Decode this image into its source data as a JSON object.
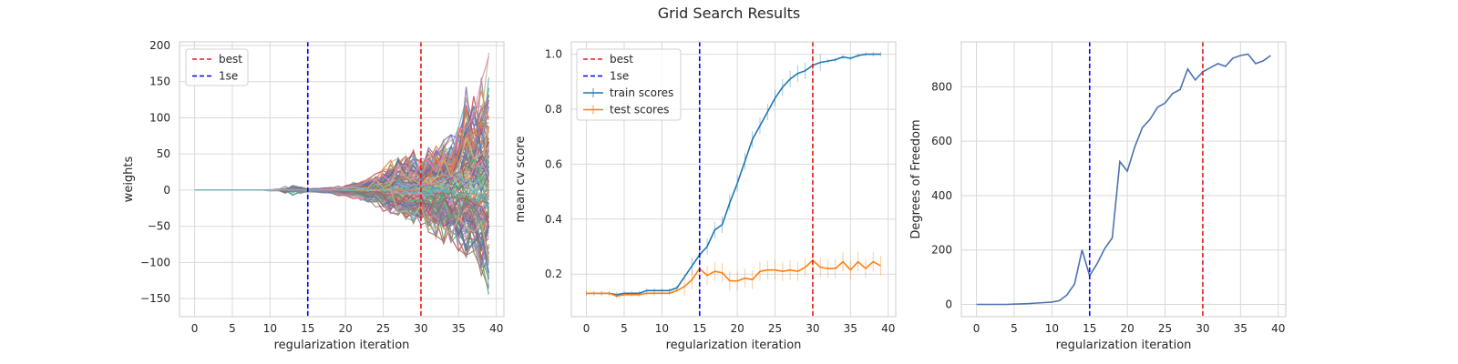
{
  "figure": {
    "title": "Grid Search Results"
  },
  "colors": {
    "best": "#e31a1c",
    "onese": "#0000ff",
    "train": "#1f77b4",
    "test": "#ff7f0e",
    "dof": "#4c72b0",
    "grid": "#d9d9d9"
  },
  "chart_data": [
    {
      "type": "line",
      "xlabel": "regularization iteration",
      "ylabel": "weights",
      "xlim": [
        -2,
        41
      ],
      "ylim": [
        -175,
        205
      ],
      "xticks": [
        "0",
        "5",
        "10",
        "15",
        "20",
        "25",
        "30",
        "35",
        "40"
      ],
      "xtick_values": [
        0,
        5,
        10,
        15,
        20,
        25,
        30,
        35,
        40
      ],
      "yticks": [
        "−150",
        "−100",
        "−50",
        "0",
        "50",
        "100",
        "150",
        "200"
      ],
      "ytick_values": [
        -150,
        -100,
        -50,
        0,
        50,
        100,
        150,
        200
      ],
      "grid": true,
      "legend_position": "top-left",
      "legend": [
        "best",
        "1se"
      ],
      "vlines": [
        {
          "name": "best",
          "x": 30
        },
        {
          "name": "1se",
          "x": 15
        }
      ],
      "note": "hundreds of coefficient paths; near 0 until ~iteration 17, then fan out to about ±150 by iteration 39",
      "iterations": [
        0,
        39
      ],
      "envelope": {
        "x": [
          0,
          5,
          10,
          13,
          15,
          18,
          20,
          22,
          25,
          27,
          28,
          30,
          32,
          34,
          35,
          36,
          37,
          38,
          39
        ],
        "upper": [
          1,
          1,
          2,
          8,
          2,
          4,
          8,
          14,
          30,
          60,
          55,
          55,
          70,
          80,
          110,
          150,
          140,
          175,
          190
        ],
        "lower": [
          -1,
          -1,
          -3,
          -8,
          -3,
          -5,
          -10,
          -14,
          -30,
          -40,
          -50,
          -50,
          -70,
          -80,
          -95,
          -100,
          -110,
          -120,
          -160
        ]
      }
    },
    {
      "type": "line",
      "xlabel": "regularization iteration",
      "ylabel": "mean cv score",
      "xlim": [
        -2,
        41
      ],
      "ylim": [
        0.045,
        1.045
      ],
      "xticks": [
        "0",
        "5",
        "10",
        "15",
        "20",
        "25",
        "30",
        "35",
        "40"
      ],
      "xtick_values": [
        0,
        5,
        10,
        15,
        20,
        25,
        30,
        35,
        40
      ],
      "yticks": [
        "0.2",
        "0.4",
        "0.6",
        "0.8",
        "1.0"
      ],
      "ytick_values": [
        0.2,
        0.4,
        0.6,
        0.8,
        1.0
      ],
      "grid": true,
      "legend_position": "top-left",
      "legend": [
        "best",
        "1se",
        "train scores",
        "test scores"
      ],
      "vlines": [
        {
          "name": "best",
          "x": 30
        },
        {
          "name": "1se",
          "x": 15
        }
      ],
      "series": [
        {
          "name": "train scores",
          "x": [
            0,
            1,
            2,
            3,
            4,
            5,
            6,
            7,
            8,
            9,
            10,
            11,
            12,
            13,
            14,
            15,
            16,
            17,
            18,
            19,
            20,
            21,
            22,
            23,
            24,
            25,
            26,
            27,
            28,
            29,
            30,
            31,
            32,
            33,
            34,
            35,
            36,
            37,
            38,
            39
          ],
          "values": [
            0.13,
            0.13,
            0.13,
            0.13,
            0.125,
            0.13,
            0.13,
            0.13,
            0.14,
            0.14,
            0.14,
            0.14,
            0.15,
            0.19,
            0.23,
            0.27,
            0.3,
            0.36,
            0.38,
            0.46,
            0.53,
            0.61,
            0.69,
            0.74,
            0.79,
            0.84,
            0.88,
            0.91,
            0.93,
            0.94,
            0.96,
            0.97,
            0.975,
            0.98,
            0.99,
            0.985,
            0.995,
            1.0,
            1.0,
            1.0
          ]
        },
        {
          "name": "test scores",
          "x": [
            0,
            1,
            2,
            3,
            4,
            5,
            6,
            7,
            8,
            9,
            10,
            11,
            12,
            13,
            14,
            15,
            16,
            17,
            18,
            19,
            20,
            21,
            22,
            23,
            24,
            25,
            26,
            27,
            28,
            29,
            30,
            31,
            32,
            33,
            34,
            35,
            36,
            37,
            38,
            39
          ],
          "values": [
            0.13,
            0.13,
            0.13,
            0.13,
            0.12,
            0.125,
            0.125,
            0.125,
            0.13,
            0.13,
            0.13,
            0.13,
            0.14,
            0.155,
            0.18,
            0.22,
            0.195,
            0.21,
            0.205,
            0.175,
            0.175,
            0.185,
            0.18,
            0.21,
            0.215,
            0.215,
            0.21,
            0.215,
            0.21,
            0.225,
            0.25,
            0.225,
            0.22,
            0.22,
            0.245,
            0.215,
            0.245,
            0.22,
            0.245,
            0.23
          ]
        }
      ]
    },
    {
      "type": "line",
      "xlabel": "regularization iteration",
      "ylabel": "Degrees of Freedom",
      "xlim": [
        -2,
        41
      ],
      "ylim": [
        -45,
        965
      ],
      "xticks": [
        "0",
        "5",
        "10",
        "15",
        "20",
        "25",
        "30",
        "35",
        "40"
      ],
      "xtick_values": [
        0,
        5,
        10,
        15,
        20,
        25,
        30,
        35,
        40
      ],
      "yticks": [
        "0",
        "200",
        "400",
        "600",
        "800"
      ],
      "ytick_values": [
        0,
        200,
        400,
        600,
        800
      ],
      "grid": true,
      "vlines": [
        {
          "name": "best",
          "x": 30
        },
        {
          "name": "1se",
          "x": 15
        }
      ],
      "series": [
        {
          "x": [
            0,
            1,
            2,
            3,
            4,
            5,
            6,
            7,
            8,
            9,
            10,
            11,
            12,
            13,
            14,
            15,
            16,
            17,
            18,
            19,
            20,
            21,
            22,
            23,
            24,
            25,
            26,
            27,
            28,
            29,
            30,
            31,
            32,
            33,
            34,
            35,
            36,
            37,
            38,
            39
          ],
          "values": [
            0,
            0,
            0,
            0,
            0,
            1,
            2,
            3,
            5,
            7,
            9,
            14,
            35,
            75,
            200,
            105,
            150,
            205,
            245,
            525,
            490,
            580,
            650,
            680,
            725,
            740,
            775,
            790,
            865,
            825,
            855,
            870,
            885,
            875,
            905,
            915,
            920,
            885,
            895,
            915
          ]
        }
      ]
    }
  ]
}
